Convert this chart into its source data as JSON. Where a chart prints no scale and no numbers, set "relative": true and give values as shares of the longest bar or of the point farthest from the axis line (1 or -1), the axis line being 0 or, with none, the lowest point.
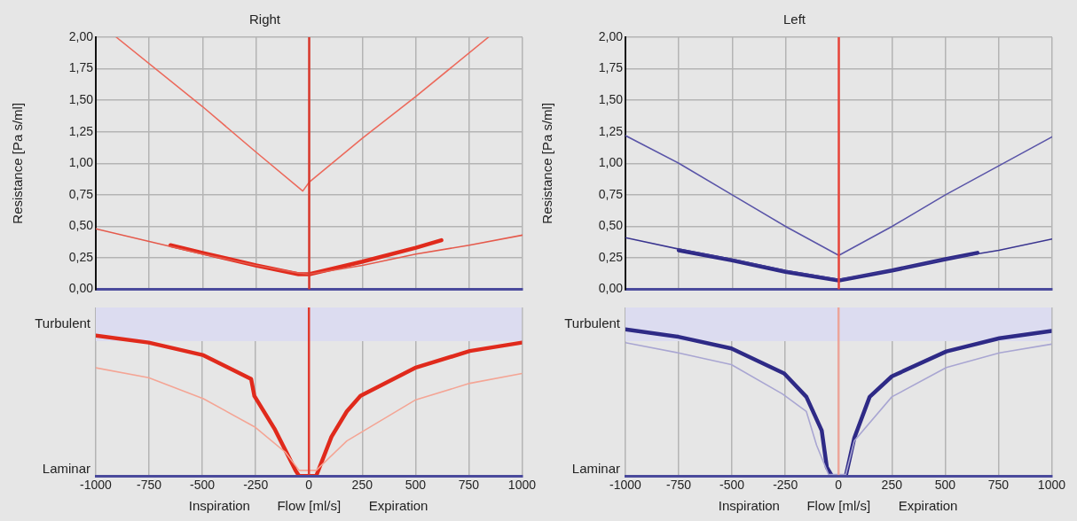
{
  "chart_data": [
    {
      "type": "line",
      "title": "Right",
      "ylabel": "Resistance [Pa s/ml]",
      "xlim": [
        -1000,
        1000
      ],
      "xticks": [
        -1000,
        -750,
        -500,
        -250,
        0,
        250,
        500,
        750,
        1000
      ],
      "ylim": [
        0,
        2
      ],
      "yticks": [
        {
          "value": 0,
          "label": "0,00"
        },
        {
          "value": 0.25,
          "label": "0,25"
        },
        {
          "value": 0.5,
          "label": "0,50"
        },
        {
          "value": 0.75,
          "label": "0,75"
        },
        {
          "value": 1,
          "label": "1,00"
        },
        {
          "value": 1.25,
          "label": "1,25"
        },
        {
          "value": 1.5,
          "label": "1,50"
        },
        {
          "value": 1.75,
          "label": "1,75"
        },
        {
          "value": 2,
          "label": "2,00"
        }
      ],
      "tick_labels": "y",
      "grid": true,
      "legend": false,
      "marker": "none",
      "ref_lines": [
        {
          "axis": "x",
          "value": 0,
          "color": "#d9372b"
        }
      ],
      "series": [
        {
          "color": "#ec6a5c",
          "x": [
            -904,
            -500,
            -250,
            -30,
            0,
            250,
            500,
            840
          ],
          "values": [
            2.0,
            1.45,
            1.09,
            0.78,
            0.85,
            1.2,
            1.53,
            2.0
          ]
        },
        {
          "color": "#e55a4c",
          "x": [
            -1000,
            -750,
            -500,
            -250,
            -50,
            0,
            250,
            500,
            750,
            1000
          ],
          "values": [
            0.48,
            0.38,
            0.28,
            0.19,
            0.13,
            0.12,
            0.19,
            0.28,
            0.35,
            0.43
          ]
        },
        {
          "color": "#e02a1c",
          "x": [
            -650,
            -500,
            -250,
            -50,
            0,
            250,
            500,
            620
          ],
          "values": [
            0.35,
            0.29,
            0.19,
            0.12,
            0.12,
            0.22,
            0.33,
            0.39
          ]
        }
      ]
    },
    {
      "type": "line",
      "title": "Left",
      "ylabel": "Resistance [Pa s/ml]",
      "xlim": [
        -1000,
        1000
      ],
      "xticks": [
        -1000,
        -750,
        -500,
        -250,
        0,
        250,
        500,
        750,
        1000
      ],
      "ylim": [
        0,
        2
      ],
      "yticks": [
        {
          "value": 0,
          "label": "0,00"
        },
        {
          "value": 0.25,
          "label": "0,25"
        },
        {
          "value": 0.5,
          "label": "0,50"
        },
        {
          "value": 0.75,
          "label": "0,75"
        },
        {
          "value": 1,
          "label": "1,00"
        },
        {
          "value": 1.25,
          "label": "1,25"
        },
        {
          "value": 1.5,
          "label": "1,50"
        },
        {
          "value": 1.75,
          "label": "1,75"
        },
        {
          "value": 2,
          "label": "2,00"
        }
      ],
      "tick_labels": "y",
      "grid": true,
      "legend": false,
      "marker": "none",
      "ref_lines": [
        {
          "axis": "x",
          "value": 0,
          "color": "#e8443a"
        }
      ],
      "series": [
        {
          "color": "#5a55a8",
          "x": [
            -1000,
            -750,
            -500,
            -250,
            0,
            250,
            500,
            750,
            1000
          ],
          "values": [
            1.22,
            1.0,
            0.75,
            0.5,
            0.27,
            0.5,
            0.75,
            0.98,
            1.21
          ]
        },
        {
          "color": "#3a3590",
          "x": [
            -1000,
            -750,
            -500,
            -250,
            0,
            250,
            500,
            750,
            1000
          ],
          "values": [
            0.41,
            0.32,
            0.24,
            0.15,
            0.08,
            0.15,
            0.24,
            0.31,
            0.4
          ]
        },
        {
          "color": "#2e2a86",
          "x": [
            -750,
            -500,
            -250,
            0,
            250,
            500,
            650
          ],
          "values": [
            0.31,
            0.23,
            0.14,
            0.07,
            0.15,
            0.24,
            0.29
          ]
        }
      ]
    },
    {
      "type": "line",
      "xlabel": "Flow [ml/s]",
      "annotations": [
        "Inspiration",
        "Expiration"
      ],
      "xlim": [
        -1000,
        1000
      ],
      "xticks": [
        -1000,
        -750,
        -500,
        -250,
        0,
        250,
        500,
        750,
        1000
      ],
      "relative": true,
      "grid": "x",
      "legend": false,
      "marker": "none",
      "ref_lines": [
        {
          "axis": "x",
          "value": 0,
          "color": "#e03a2e"
        },
        {
          "axis": "y",
          "value": 0,
          "label": "Laminar",
          "color": "#4a4a9c"
        }
      ],
      "bands": [
        {
          "axis": "y",
          "from": 0.96,
          "to": 1.2,
          "label": "Turbulent",
          "color": "#dcdcf0"
        }
      ],
      "series": [
        {
          "color": "#f4a595",
          "x": [
            -1000,
            -752,
            -495,
            -255,
            -111,
            -46,
            34,
            178,
            498,
            755,
            1000
          ],
          "values": [
            0.77,
            0.7,
            0.55,
            0.35,
            0.17,
            0.04,
            0.04,
            0.25,
            0.54,
            0.66,
            0.73
          ]
        },
        {
          "color": "#e02a1c",
          "x": [
            -1000,
            -752,
            -495,
            -271,
            -256,
            -159,
            -63,
            -46,
            34,
            106,
            178,
            242,
            498,
            755,
            1000
          ],
          "values": [
            1,
            0.95,
            0.86,
            0.69,
            0.57,
            0.33,
            0.04,
            0,
            0,
            0.28,
            0.46,
            0.57,
            0.77,
            0.89,
            0.95
          ]
        }
      ]
    },
    {
      "type": "line",
      "xlabel": "Flow [ml/s]",
      "annotations": [
        "Inspiration",
        "Expiration"
      ],
      "xlim": [
        -1000,
        1000
      ],
      "xticks": [
        -1000,
        -750,
        -500,
        -250,
        0,
        250,
        500,
        750,
        1000
      ],
      "relative": true,
      "grid": "x",
      "legend": false,
      "marker": "none",
      "ref_lines": [
        {
          "axis": "x",
          "value": 0,
          "color": "#eca59a"
        },
        {
          "axis": "y",
          "value": 0,
          "label": "Laminar",
          "color": "#4a4a9c"
        }
      ],
      "bands": [
        {
          "axis": "y",
          "from": 0.92,
          "to": 1.15,
          "label": "Turbulent",
          "color": "#dcdcf0"
        }
      ],
      "series": [
        {
          "color": "#a9a6d2",
          "x": [
            -1000,
            -752,
            -503,
            -263,
            -151,
            -103,
            -47,
            34,
            74,
            250,
            506,
            755,
            1000
          ],
          "values": [
            0.91,
            0.84,
            0.76,
            0.56,
            0.44,
            0.21,
            0.01,
            0.01,
            0.24,
            0.54,
            0.74,
            0.84,
            0.9
          ]
        },
        {
          "color": "#2e2a86",
          "x": [
            -1000,
            -752,
            -503,
            -255,
            -151,
            -79,
            -55,
            -31,
            34,
            74,
            146,
            250,
            506,
            755,
            1000
          ],
          "values": [
            1,
            0.95,
            0.87,
            0.7,
            0.54,
            0.31,
            0.06,
            0,
            0,
            0.26,
            0.54,
            0.68,
            0.85,
            0.94,
            0.99
          ]
        }
      ]
    }
  ]
}
